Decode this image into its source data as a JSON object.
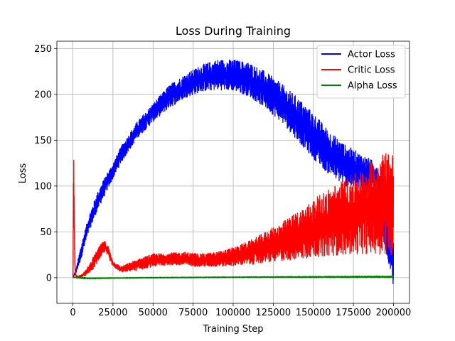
{
  "chart_data": {
    "type": "line",
    "title": "Loss During Training",
    "xlabel": "Training Step",
    "ylabel": "Loss",
    "xlim": [
      -10000,
      210000
    ],
    "ylim": [
      -28,
      258
    ],
    "xticks": [
      0,
      25000,
      50000,
      75000,
      100000,
      125000,
      150000,
      175000,
      200000
    ],
    "yticks": [
      0,
      50,
      100,
      150,
      200,
      250
    ],
    "grid": true,
    "legend_position": "top-right",
    "series": [
      {
        "name": "Actor Loss",
        "color": "#0000ff",
        "x": [
          0,
          2000,
          5000,
          10000,
          15000,
          20000,
          25000,
          30000,
          40000,
          50000,
          60000,
          70000,
          80000,
          90000,
          100000,
          110000,
          120000,
          130000,
          140000,
          150000,
          160000,
          170000,
          180000,
          190000,
          195000,
          200000
        ],
        "lower": [
          0,
          5,
          20,
          50,
          72,
          90,
          108,
          125,
          152,
          170,
          185,
          196,
          203,
          205,
          204,
          198,
          185,
          170,
          150,
          130,
          112,
          100,
          95,
          90,
          30,
          -10
        ],
        "upper": [
          0,
          10,
          35,
          68,
          92,
          110,
          125,
          143,
          170,
          190,
          210,
          222,
          232,
          238,
          238,
          235,
          225,
          212,
          197,
          180,
          160,
          145,
          135,
          125,
          85,
          40
        ]
      },
      {
        "name": "Critic Loss",
        "color": "#ff0000",
        "x": [
          0,
          500,
          1000,
          1500,
          2000,
          3000,
          5000,
          8000,
          12000,
          15000,
          18000,
          20000,
          22000,
          25000,
          30000,
          40000,
          50000,
          60000,
          70000,
          80000,
          90000,
          100000,
          110000,
          120000,
          130000,
          140000,
          150000,
          160000,
          170000,
          180000,
          190000,
          195000,
          200000
        ],
        "lower": [
          0,
          70,
          15,
          3,
          1,
          0,
          0,
          2,
          8,
          15,
          25,
          28,
          22,
          12,
          6,
          8,
          12,
          14,
          13,
          12,
          12,
          13,
          14,
          16,
          18,
          20,
          22,
          24,
          25,
          26,
          26,
          25,
          22
        ],
        "upper": [
          0,
          143,
          50,
          10,
          3,
          2,
          3,
          8,
          20,
          30,
          38,
          40,
          35,
          18,
          12,
          20,
          26,
          27,
          28,
          26,
          28,
          33,
          40,
          50,
          60,
          72,
          85,
          98,
          108,
          118,
          130,
          140,
          140
        ]
      },
      {
        "name": "Alpha Loss",
        "color": "#008000",
        "x": [
          0,
          5000,
          10000,
          20000,
          50000,
          100000,
          150000,
          200000
        ],
        "lower": [
          0,
          -1,
          -1.5,
          -1,
          -0.5,
          0,
          0,
          0
        ],
        "upper": [
          1,
          0.5,
          0,
          0,
          0.5,
          1,
          1.5,
          2
        ]
      }
    ]
  }
}
